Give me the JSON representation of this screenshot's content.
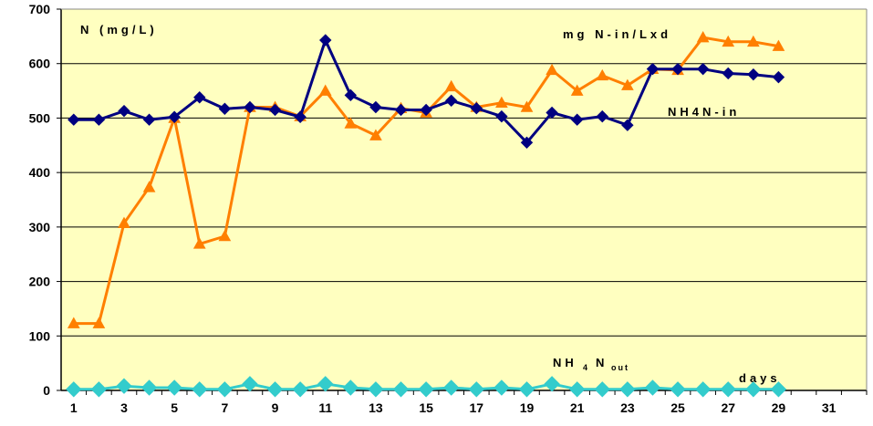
{
  "chart_data": {
    "type": "line",
    "ylabel": "N (mg/L)",
    "xlabel": "days",
    "ylim": [
      0,
      700
    ],
    "y_ticks": [
      0,
      100,
      200,
      300,
      400,
      500,
      600,
      700
    ],
    "xlim": [
      0.5,
      32.5
    ],
    "x_ticks": [
      1,
      3,
      5,
      7,
      9,
      11,
      13,
      15,
      17,
      19,
      21,
      23,
      25,
      27,
      29,
      31
    ],
    "grid": true,
    "plot_background": "#ffffc0",
    "series": [
      {
        "name": "mg N-in/Lxd",
        "color": "#ff7f00",
        "marker": "triangle",
        "x": [
          1,
          2,
          3,
          4,
          5,
          6,
          7,
          8,
          9,
          10,
          11,
          12,
          13,
          14,
          15,
          16,
          17,
          18,
          19,
          20,
          21,
          22,
          23,
          24,
          25,
          26,
          27,
          28,
          29
        ],
        "values": [
          123,
          123,
          307,
          373,
          500,
          269,
          283,
          520,
          520,
          503,
          550,
          490,
          468,
          518,
          510,
          558,
          520,
          528,
          520,
          588,
          550,
          578,
          560,
          590,
          588,
          648,
          640,
          640,
          632
        ]
      },
      {
        "name": "NH4N-in",
        "color": "#000080",
        "marker": "diamond",
        "x": [
          1,
          2,
          3,
          4,
          5,
          6,
          7,
          8,
          9,
          10,
          11,
          12,
          13,
          14,
          15,
          16,
          17,
          18,
          19,
          20,
          21,
          22,
          23,
          24,
          25,
          26,
          27,
          28,
          29
        ],
        "values": [
          497,
          497,
          513,
          497,
          502,
          538,
          517,
          520,
          515,
          502,
          643,
          542,
          520,
          515,
          515,
          532,
          518,
          503,
          455,
          510,
          497,
          503,
          487,
          590,
          590,
          590,
          582,
          580,
          575
        ]
      },
      {
        "name": "NH4Nout",
        "label_main": "NH",
        "label_sub1": "4",
        "label_main2": "N",
        "label_sub2": "out",
        "color": "#33cccc",
        "marker": "diamond",
        "x": [
          1,
          2,
          3,
          4,
          5,
          6,
          7,
          8,
          9,
          10,
          11,
          12,
          13,
          14,
          15,
          16,
          17,
          18,
          19,
          20,
          21,
          22,
          23,
          24,
          25,
          26,
          27,
          28,
          29
        ],
        "values": [
          2,
          2,
          8,
          5,
          5,
          2,
          2,
          12,
          2,
          2,
          12,
          5,
          2,
          2,
          2,
          5,
          2,
          5,
          2,
          12,
          2,
          2,
          2,
          5,
          2,
          2,
          2,
          2,
          2
        ]
      }
    ]
  }
}
